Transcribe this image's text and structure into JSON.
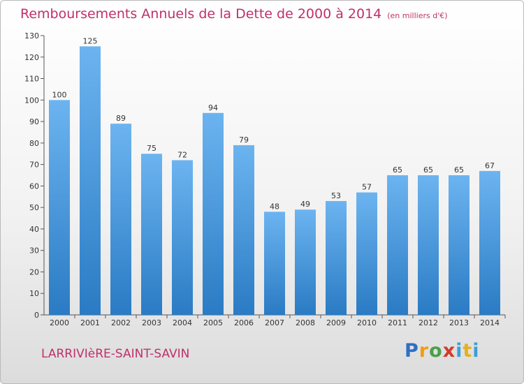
{
  "title": "Remboursements Annuels de la Dette de 2000 à 2014",
  "unit": "(en milliers d'€)",
  "commune": "LARRIVIèRE-SAINT-SAVIN",
  "logo": "Proxiti",
  "colors": {
    "bar_light": "#6cb4f0",
    "bar_dark": "#2a7bc4",
    "title": "#c0306a"
  },
  "chart_data": {
    "type": "bar",
    "title": "Remboursements Annuels de la Dette de 2000 à 2014",
    "xlabel": "",
    "ylabel": "",
    "categories": [
      "2000",
      "2001",
      "2002",
      "2003",
      "2004",
      "2005",
      "2006",
      "2007",
      "2008",
      "2009",
      "2010",
      "2011",
      "2012",
      "2013",
      "2014"
    ],
    "values": [
      100,
      125,
      89,
      75,
      72,
      94,
      79,
      48,
      49,
      53,
      57,
      65,
      65,
      65,
      67
    ],
    "ylim": [
      0,
      130
    ],
    "yticks": [
      0,
      10,
      20,
      30,
      40,
      50,
      60,
      70,
      80,
      90,
      100,
      110,
      120,
      130
    ],
    "grid": false,
    "legend": "none"
  }
}
